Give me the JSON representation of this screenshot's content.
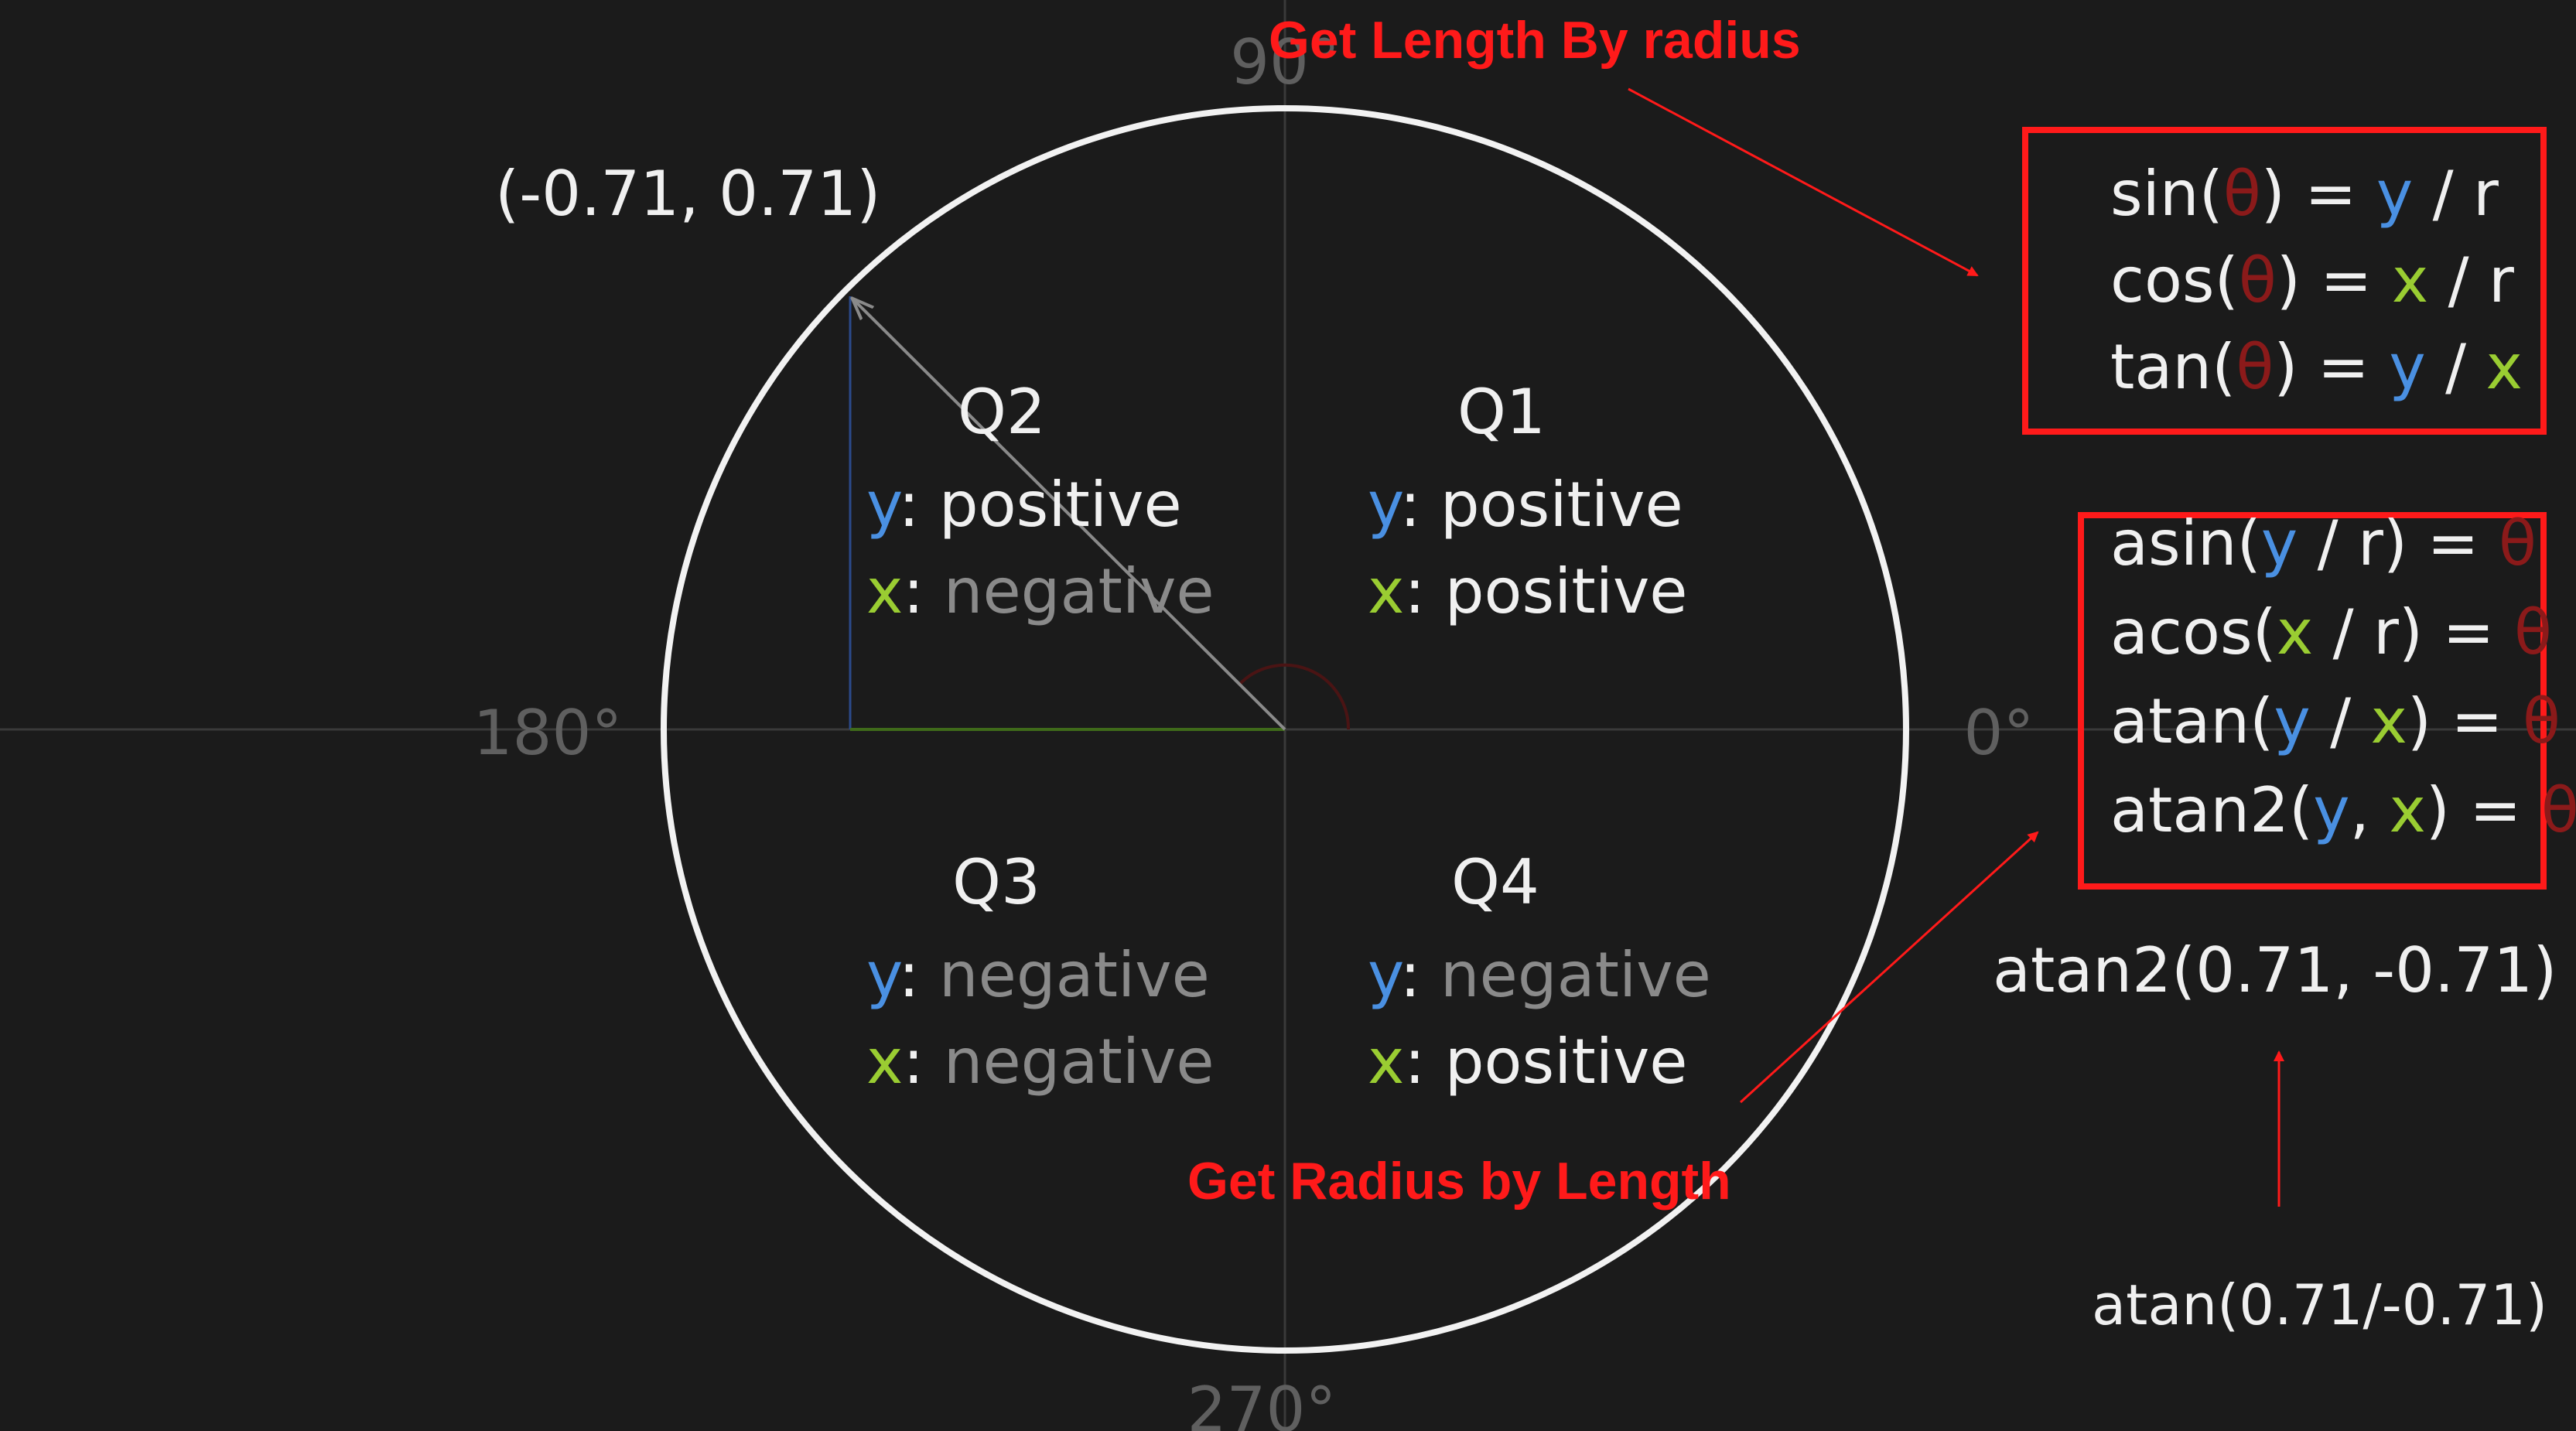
{
  "colors": {
    "background": "#1b1b1b",
    "axis": "#3a3a3a",
    "circle": "#f2f2f2",
    "text": "#f0f0f0",
    "dim_text": "#8a8a8a",
    "degree_label": "#5f5f5f",
    "y_color": "#4a90e2",
    "x_color": "#9acd32",
    "theta_color": "#8b1a1a",
    "annotation_red": "#ff1a1a",
    "vector": "#8a8a8a"
  },
  "point_label": "(-0.71, 0.71)",
  "degrees": {
    "top": "90°",
    "left": "180°",
    "right": "0°",
    "bottom": "270°"
  },
  "quadrants": {
    "q1": {
      "title": "Q1",
      "y_key": "y",
      "y_val": "positive",
      "x_key": "x",
      "x_val": "positive"
    },
    "q2": {
      "title": "Q2",
      "y_key": "y",
      "y_val": "positive",
      "x_key": "x",
      "x_val": "negative"
    },
    "q3": {
      "title": "Q3",
      "y_key": "y",
      "y_val": "negative",
      "x_key": "x",
      "x_val": "negative"
    },
    "q4": {
      "title": "Q4",
      "y_key": "y",
      "y_val": "negative",
      "x_key": "x",
      "x_val": "positive"
    }
  },
  "annotations": {
    "top_label": "Get Length By radius",
    "bottom_label": "Get Radius by Length"
  },
  "trig_box": {
    "sin": {
      "fn": "sin(",
      "theta": "θ",
      "close": ") = ",
      "num": "y",
      "op": " / ",
      "den": "r"
    },
    "cos": {
      "fn": "cos(",
      "theta": "θ",
      "close": ") = ",
      "num": "x",
      "op": " / ",
      "den": "r"
    },
    "tan": {
      "fn": "tan(",
      "theta": "θ",
      "close": ") = ",
      "num": "y",
      "op": " / ",
      "den": "x"
    }
  },
  "inverse_box": {
    "asin": {
      "fn": "asin(",
      "a": "y",
      "op": " / ",
      "b": "r",
      "close": ") = ",
      "theta": "θ"
    },
    "acos": {
      "fn": "acos(",
      "a": "x",
      "op": " / ",
      "b": "r",
      "close": ") = ",
      "theta": "θ"
    },
    "atan": {
      "fn": "atan(",
      "a": "y",
      "op": " / ",
      "b": "x",
      "close": ") = ",
      "theta": "θ"
    },
    "atan2": {
      "fn": "atan2(",
      "a": "y",
      "op": ", ",
      "b": "x",
      "close": ") = ",
      "theta": "θ"
    }
  },
  "atan2_example": "atan2(0.71, -0.71)",
  "atan_example": "atan(0.71/-0.71)"
}
